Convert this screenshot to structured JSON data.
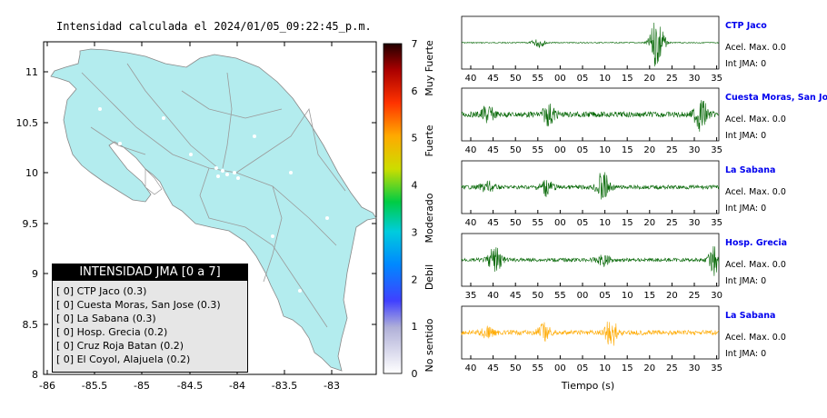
{
  "map": {
    "title": "Intensidad calculada el 2024/01/05_09:22:45_p.m.",
    "lat_ticks": [
      "11",
      "10.5",
      "10",
      "9.5",
      "9",
      "8.5",
      "8"
    ],
    "lon_ticks": [
      "-86",
      "-85.5",
      "-85",
      "-84.5",
      "-84",
      "-83.5",
      "-83"
    ],
    "land_color": "#b3ecee"
  },
  "colorbar": {
    "ticks": [
      "7",
      "6",
      "5",
      "4",
      "3",
      "2",
      "1",
      "0"
    ],
    "categories": [
      "Muy Fuerte",
      "Fuerte",
      "Moderado",
      "Debil",
      "No sentido"
    ]
  },
  "legend": {
    "title": "INTENSIDAD JMA [0 a 7]",
    "items": [
      {
        "label": "[ 0]  CTP Jaco (0.3)"
      },
      {
        "label": "[ 0]  Cuesta Moras, San Jose (0.3)"
      },
      {
        "label": "[ 0]  La Sabana (0.3)"
      },
      {
        "label": "[ 0]  Hosp. Grecia (0.2)"
      },
      {
        "label": "[ 0]  Cruz Roja Batan (0.2)"
      },
      {
        "label": "[ 0]  El Coyol, Alajuela (0.2)"
      }
    ]
  },
  "waveforms": [
    {
      "name": "CTP Jaco",
      "accel": "Acel. Max. 0.0",
      "int": "Int JMA: 0",
      "color": "#006400",
      "ticks": [
        "40",
        "45",
        "50",
        "55",
        "00",
        "05",
        "10",
        "15",
        "20",
        "25",
        "30",
        "35"
      ]
    },
    {
      "name": "Cuesta Moras, San Jose",
      "accel": "Acel. Max. 0.0",
      "int": "Int JMA: 0",
      "color": "#006400",
      "ticks": [
        "40",
        "45",
        "50",
        "55",
        "00",
        "05",
        "10",
        "15",
        "20",
        "25",
        "30",
        "35"
      ]
    },
    {
      "name": "La Sabana",
      "accel": "Acel. Max. 0.0",
      "int": "Int JMA: 0",
      "color": "#006400",
      "ticks": [
        "40",
        "45",
        "50",
        "55",
        "00",
        "05",
        "10",
        "15",
        "20",
        "25",
        "30",
        "35"
      ]
    },
    {
      "name": "Hosp. Grecia",
      "accel": "Acel. Max. 0.0",
      "int": "Int JMA: 0",
      "color": "#006400",
      "ticks": [
        "35",
        "40",
        "45",
        "50",
        "55",
        "00",
        "05",
        "10",
        "15",
        "20",
        "25",
        "30"
      ]
    },
    {
      "name": "La Sabana",
      "accel": "Acel. Max. 0.0",
      "int": "Int JMA: 0",
      "color": "#ffaa00",
      "ticks": [
        "40",
        "45",
        "50",
        "55",
        "00",
        "05",
        "10",
        "15",
        "20",
        "25",
        "30",
        "35"
      ]
    }
  ],
  "xlabel": "Tiempo (s)"
}
